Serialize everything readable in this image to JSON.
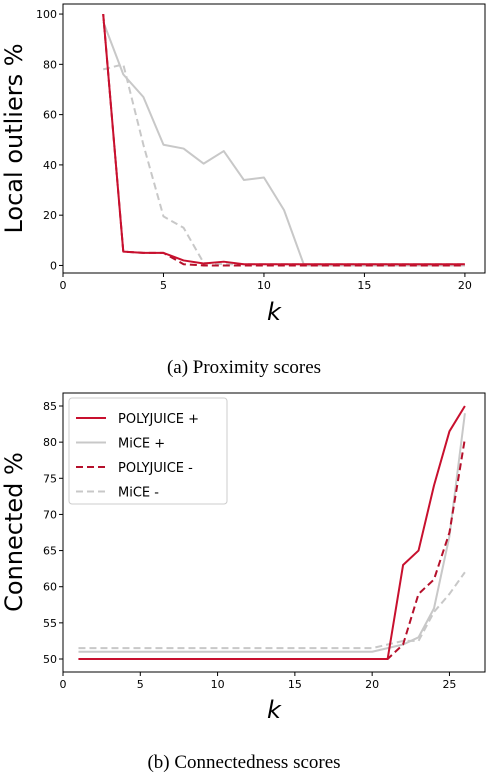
{
  "chart_data": [
    {
      "type": "line",
      "caption": "(a) Proximity scores",
      "xlabel": "k",
      "ylabel": "Local outliers %",
      "xlim": [
        0,
        21
      ],
      "ylim": [
        -3,
        104
      ],
      "xticks": [
        0,
        5,
        10,
        15,
        20
      ],
      "yticks": [
        0,
        20,
        40,
        60,
        80,
        100
      ],
      "grid": false,
      "series": [
        {
          "style": "MiCE +",
          "color": "#c8c8c8",
          "dash": "solid",
          "x": [
            2,
            3,
            4,
            5,
            6,
            7,
            8,
            9,
            10,
            11,
            12,
            13,
            14,
            15,
            16,
            17,
            18,
            19,
            20
          ],
          "y": [
            97,
            76,
            67,
            48,
            46.5,
            40.5,
            45.5,
            34,
            35,
            22,
            0,
            0,
            0,
            0,
            0,
            0,
            0,
            0,
            0
          ]
        },
        {
          "style": "MiCE -",
          "color": "#c8c8c8",
          "dash": "dashed",
          "x": [
            2,
            3,
            4,
            5,
            6,
            7,
            8,
            9,
            10,
            11,
            12,
            13,
            14,
            15,
            16,
            17,
            18,
            19,
            20
          ],
          "y": [
            78,
            80,
            48,
            19.5,
            15,
            1,
            0.5,
            0.5,
            0.5,
            0.5,
            0.5,
            0.5,
            0.5,
            0.5,
            0.5,
            0.5,
            0.5,
            0.5,
            0.5
          ]
        },
        {
          "style": "POLYJUICE -",
          "color": "#b5102b",
          "dash": "dashed",
          "x": [
            2,
            3,
            4,
            5,
            6,
            7,
            8,
            9,
            10,
            11,
            12,
            13,
            14,
            15,
            16,
            17,
            18,
            19,
            20
          ],
          "y": [
            100,
            5.5,
            5,
            5,
            0.5,
            0,
            0,
            0,
            0,
            0,
            0,
            0,
            0,
            0,
            0,
            0,
            0,
            0,
            0
          ]
        },
        {
          "style": "POLYJUICE +",
          "color": "#c8102e",
          "dash": "solid",
          "x": [
            2,
            3,
            4,
            5,
            6,
            7,
            8,
            9,
            10,
            11,
            12,
            13,
            14,
            15,
            16,
            17,
            18,
            19,
            20
          ],
          "y": [
            100,
            5.5,
            5,
            5,
            2,
            0.8,
            1.5,
            0.5,
            0.5,
            0.5,
            0.5,
            0.5,
            0.5,
            0.5,
            0.5,
            0.5,
            0.5,
            0.5,
            0.5
          ]
        }
      ]
    },
    {
      "type": "line",
      "caption": "(b) Connectedness scores",
      "xlabel": "k",
      "ylabel": "Connected %",
      "xlim": [
        0,
        27.3
      ],
      "ylim": [
        48.2,
        86.8
      ],
      "xticks": [
        0,
        5,
        10,
        15,
        20,
        25
      ],
      "yticks": [
        50,
        55,
        60,
        65,
        70,
        75,
        80,
        85
      ],
      "grid": false,
      "legend": "top-left",
      "series": [
        {
          "name": "MiCE -",
          "color": "#c8c8c8",
          "dash": "dashed",
          "x": [
            1,
            2,
            3,
            4,
            5,
            6,
            7,
            8,
            9,
            10,
            11,
            12,
            13,
            14,
            15,
            16,
            17,
            18,
            19,
            20,
            21,
            22,
            23,
            24,
            25,
            26
          ],
          "y": [
            51.5,
            51.5,
            51.5,
            51.5,
            51.5,
            51.5,
            51.5,
            51.5,
            51.5,
            51.5,
            51.5,
            51.5,
            51.5,
            51.5,
            51.5,
            51.5,
            51.5,
            51.5,
            51.5,
            51.5,
            52,
            52.5,
            52.5,
            56.5,
            59,
            62
          ]
        },
        {
          "name": "MiCE +",
          "color": "#c8c8c8",
          "dash": "solid",
          "x": [
            1,
            2,
            3,
            4,
            5,
            6,
            7,
            8,
            9,
            10,
            11,
            12,
            13,
            14,
            15,
            16,
            17,
            18,
            19,
            20,
            21,
            22,
            23,
            24,
            25,
            26
          ],
          "y": [
            51,
            51,
            51,
            51,
            51,
            51,
            51,
            51,
            51,
            51,
            51,
            51,
            51,
            51,
            51,
            51,
            51,
            51,
            51,
            51,
            51.5,
            52,
            53,
            57,
            67,
            84
          ]
        },
        {
          "name": "POLYJUICE -",
          "color": "#b5102b",
          "dash": "dashed",
          "x": [
            1,
            2,
            3,
            4,
            5,
            6,
            7,
            8,
            9,
            10,
            11,
            12,
            13,
            14,
            15,
            16,
            17,
            18,
            19,
            20,
            21,
            22,
            23,
            24,
            25,
            26
          ],
          "y": [
            50,
            50,
            50,
            50,
            50,
            50,
            50,
            50,
            50,
            50,
            50,
            50,
            50,
            50,
            50,
            50,
            50,
            50,
            50,
            50,
            50,
            52,
            59,
            61,
            67.5,
            80.5
          ]
        },
        {
          "name": "POLYJUICE +",
          "color": "#c8102e",
          "dash": "solid",
          "x": [
            1,
            2,
            3,
            4,
            5,
            6,
            7,
            8,
            9,
            10,
            11,
            12,
            13,
            14,
            15,
            16,
            17,
            18,
            19,
            20,
            21,
            22,
            23,
            24,
            25,
            26
          ],
          "y": [
            50,
            50,
            50,
            50,
            50,
            50,
            50,
            50,
            50,
            50,
            50,
            50,
            50,
            50,
            50,
            50,
            50,
            50,
            50,
            50,
            50,
            63,
            65,
            74,
            81.5,
            85
          ]
        }
      ],
      "legend_entries": [
        {
          "name": "POLYJUICE +",
          "color": "#c8102e",
          "dash": "solid"
        },
        {
          "name": "MiCE +",
          "color": "#c8c8c8",
          "dash": "solid"
        },
        {
          "name": "POLYJUICE -",
          "color": "#b5102b",
          "dash": "dashed"
        },
        {
          "name": "MiCE -",
          "color": "#c8c8c8",
          "dash": "dashed"
        }
      ]
    }
  ]
}
